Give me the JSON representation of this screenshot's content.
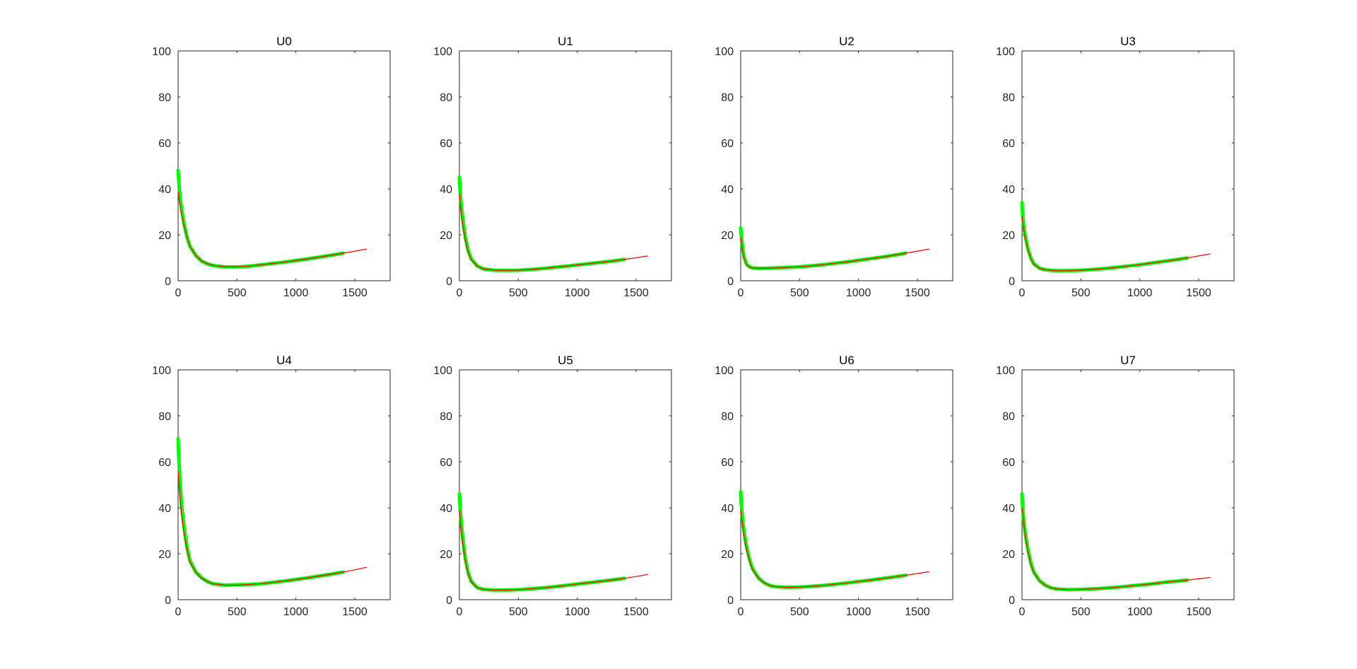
{
  "colors": {
    "fit": "#ff0000",
    "measured": "#00ff00",
    "axes": "#262626"
  },
  "chart_data": [
    {
      "type": "line",
      "title": "U0",
      "xlim": [
        0,
        1800
      ],
      "ylim": [
        0,
        100
      ],
      "xticks": [
        0,
        500,
        1000,
        1500
      ],
      "yticks": [
        0,
        20,
        40,
        60,
        80,
        100
      ],
      "grid": false,
      "series": [
        {
          "role": "measured",
          "x": [
            0,
            5,
            10,
            20,
            30,
            50,
            75,
            100,
            150,
            200,
            250,
            300,
            400,
            500,
            600,
            700,
            800,
            900,
            1000,
            1100,
            1200,
            1300,
            1400
          ],
          "y": [
            48,
            44,
            40,
            35,
            31,
            25,
            19,
            15,
            11,
            8.5,
            7.3,
            6.6,
            6.0,
            6.0,
            6.3,
            6.9,
            7.5,
            8.1,
            8.8,
            9.5,
            10.3,
            11.1,
            12.0
          ]
        },
        {
          "role": "fit",
          "x": [
            0,
            5,
            10,
            20,
            30,
            50,
            75,
            100,
            150,
            200,
            250,
            300,
            400,
            500,
            600,
            700,
            800,
            900,
            1000,
            1100,
            1200,
            1300,
            1400,
            1500,
            1600
          ],
          "y": [
            39,
            37,
            35,
            32,
            29,
            24,
            19,
            15,
            11,
            8.6,
            7.4,
            6.7,
            6.1,
            6.1,
            6.4,
            6.9,
            7.5,
            8.1,
            8.8,
            9.5,
            10.3,
            11.1,
            12.0,
            12.9,
            13.8
          ]
        }
      ]
    },
    {
      "type": "line",
      "title": "U1",
      "xlim": [
        0,
        1800
      ],
      "ylim": [
        0,
        100
      ],
      "xticks": [
        0,
        500,
        1000,
        1500
      ],
      "yticks": [
        0,
        20,
        40,
        60,
        80,
        100
      ],
      "grid": false,
      "series": [
        {
          "role": "measured",
          "x": [
            0,
            5,
            10,
            20,
            30,
            50,
            75,
            100,
            150,
            200,
            250,
            300,
            400,
            500,
            600,
            700,
            800,
            900,
            1000,
            1100,
            1200,
            1300,
            1400
          ],
          "y": [
            45,
            40,
            36,
            31,
            26,
            19,
            13,
            9.5,
            6.5,
            5.2,
            4.8,
            4.6,
            4.5,
            4.6,
            4.9,
            5.3,
            5.8,
            6.3,
            6.9,
            7.4,
            8.0,
            8.6,
            9.3
          ]
        },
        {
          "role": "fit",
          "x": [
            0,
            5,
            10,
            20,
            30,
            50,
            75,
            100,
            150,
            200,
            250,
            300,
            400,
            500,
            600,
            700,
            800,
            900,
            1000,
            1100,
            1200,
            1300,
            1400,
            1500,
            1600
          ],
          "y": [
            38,
            35,
            32,
            28,
            24,
            18,
            12.5,
            9.2,
            6.4,
            5.2,
            4.8,
            4.6,
            4.5,
            4.6,
            4.9,
            5.3,
            5.8,
            6.3,
            6.9,
            7.4,
            8.0,
            8.6,
            9.3,
            10.0,
            10.8
          ]
        }
      ]
    },
    {
      "type": "line",
      "title": "U2",
      "xlim": [
        0,
        1800
      ],
      "ylim": [
        0,
        100
      ],
      "xticks": [
        0,
        500,
        1000,
        1500
      ],
      "yticks": [
        0,
        20,
        40,
        60,
        80,
        100
      ],
      "grid": false,
      "series": [
        {
          "role": "measured",
          "x": [
            0,
            5,
            10,
            20,
            30,
            50,
            75,
            100,
            150,
            200,
            250,
            300,
            400,
            500,
            600,
            700,
            800,
            900,
            1000,
            1100,
            1200,
            1300,
            1400
          ],
          "y": [
            23,
            20,
            17,
            13,
            10,
            7.2,
            6.0,
            5.6,
            5.4,
            5.4,
            5.5,
            5.6,
            5.8,
            6.1,
            6.5,
            7.0,
            7.6,
            8.2,
            8.9,
            9.6,
            10.3,
            11.1,
            12.0
          ]
        },
        {
          "role": "fit",
          "x": [
            0,
            5,
            10,
            20,
            30,
            50,
            75,
            100,
            150,
            200,
            250,
            300,
            400,
            500,
            600,
            700,
            800,
            900,
            1000,
            1100,
            1200,
            1300,
            1400,
            1500,
            1600
          ],
          "y": [
            19,
            17,
            15,
            12,
            9.5,
            7.0,
            5.9,
            5.5,
            5.4,
            5.4,
            5.5,
            5.6,
            5.8,
            6.1,
            6.5,
            7.0,
            7.6,
            8.2,
            8.9,
            9.6,
            10.3,
            11.1,
            12.0,
            12.9,
            13.8
          ]
        }
      ]
    },
    {
      "type": "line",
      "title": "U3",
      "xlim": [
        0,
        1800
      ],
      "ylim": [
        0,
        100
      ],
      "xticks": [
        0,
        500,
        1000,
        1500
      ],
      "yticks": [
        0,
        20,
        40,
        60,
        80,
        100
      ],
      "grid": false,
      "series": [
        {
          "role": "measured",
          "x": [
            0,
            5,
            10,
            20,
            30,
            50,
            75,
            100,
            150,
            200,
            250,
            300,
            400,
            500,
            600,
            700,
            800,
            900,
            1000,
            1100,
            1200,
            1300,
            1400
          ],
          "y": [
            34,
            29,
            26,
            22,
            19,
            14,
            9.8,
            7.4,
            5.4,
            4.8,
            4.5,
            4.4,
            4.4,
            4.6,
            4.9,
            5.3,
            5.8,
            6.4,
            7.0,
            7.7,
            8.4,
            9.1,
            9.9
          ]
        },
        {
          "role": "fit",
          "x": [
            0,
            5,
            10,
            20,
            30,
            50,
            75,
            100,
            150,
            200,
            250,
            300,
            400,
            500,
            600,
            700,
            800,
            900,
            1000,
            1100,
            1200,
            1300,
            1400,
            1500,
            1600
          ],
          "y": [
            28,
            26,
            24,
            21,
            18,
            13.5,
            9.5,
            7.2,
            5.3,
            4.7,
            4.5,
            4.4,
            4.4,
            4.6,
            4.9,
            5.3,
            5.8,
            6.4,
            7.0,
            7.7,
            8.4,
            9.1,
            9.9,
            10.8,
            11.7
          ]
        }
      ]
    },
    {
      "type": "line",
      "title": "U4",
      "xlim": [
        0,
        1800
      ],
      "ylim": [
        0,
        100
      ],
      "xticks": [
        0,
        500,
        1000,
        1500
      ],
      "yticks": [
        0,
        20,
        40,
        60,
        80,
        100
      ],
      "grid": false,
      "series": [
        {
          "role": "measured",
          "x": [
            0,
            5,
            10,
            20,
            30,
            50,
            75,
            100,
            150,
            200,
            250,
            300,
            400,
            500,
            600,
            700,
            800,
            900,
            1000,
            1100,
            1200,
            1300,
            1400
          ],
          "y": [
            70,
            63,
            57,
            48,
            41,
            32,
            23,
            17,
            12,
            9.5,
            7.8,
            6.9,
            6.3,
            6.5,
            6.6,
            6.9,
            7.5,
            8.1,
            8.8,
            9.5,
            10.3,
            11.1,
            12.0
          ]
        },
        {
          "role": "fit",
          "x": [
            0,
            5,
            10,
            20,
            30,
            50,
            75,
            100,
            150,
            200,
            250,
            300,
            400,
            500,
            600,
            700,
            800,
            900,
            1000,
            1100,
            1200,
            1300,
            1400,
            1500,
            1600
          ],
          "y": [
            56,
            52,
            48,
            42,
            37,
            29,
            22,
            16.5,
            11.8,
            9.3,
            7.8,
            6.9,
            6.3,
            6.3,
            6.6,
            7.0,
            7.5,
            8.1,
            8.8,
            9.5,
            10.3,
            11.1,
            12.0,
            13.0,
            14.1
          ]
        }
      ]
    },
    {
      "type": "line",
      "title": "U5",
      "xlim": [
        0,
        1800
      ],
      "ylim": [
        0,
        100
      ],
      "xticks": [
        0,
        500,
        1000,
        1500
      ],
      "yticks": [
        0,
        20,
        40,
        60,
        80,
        100
      ],
      "grid": false,
      "series": [
        {
          "role": "measured",
          "x": [
            0,
            5,
            10,
            20,
            30,
            50,
            75,
            100,
            150,
            200,
            250,
            300,
            400,
            500,
            600,
            700,
            800,
            900,
            1000,
            1100,
            1200,
            1300,
            1400
          ],
          "y": [
            46,
            41,
            37,
            31,
            26,
            18,
            11.5,
            8.0,
            5.3,
            4.5,
            4.3,
            4.2,
            4.2,
            4.4,
            4.7,
            5.1,
            5.6,
            6.2,
            6.8,
            7.4,
            8.0,
            8.6,
            9.3
          ]
        },
        {
          "role": "fit",
          "x": [
            0,
            5,
            10,
            20,
            30,
            50,
            75,
            100,
            150,
            200,
            250,
            300,
            400,
            500,
            600,
            700,
            800,
            900,
            1000,
            1100,
            1200,
            1300,
            1400,
            1500,
            1600
          ],
          "y": [
            39,
            36,
            33,
            28,
            24,
            17,
            11.2,
            7.8,
            5.2,
            4.5,
            4.3,
            4.2,
            4.2,
            4.4,
            4.7,
            5.1,
            5.6,
            6.2,
            6.8,
            7.4,
            8.0,
            8.6,
            9.3,
            10.1,
            11.0
          ]
        }
      ]
    },
    {
      "type": "line",
      "title": "U6",
      "xlim": [
        0,
        1800
      ],
      "ylim": [
        0,
        100
      ],
      "xticks": [
        0,
        500,
        1000,
        1500
      ],
      "yticks": [
        0,
        20,
        40,
        60,
        80,
        100
      ],
      "grid": false,
      "series": [
        {
          "role": "measured",
          "x": [
            0,
            5,
            10,
            20,
            30,
            50,
            75,
            100,
            150,
            200,
            250,
            300,
            400,
            500,
            600,
            700,
            800,
            900,
            1000,
            1100,
            1200,
            1300,
            1400
          ],
          "y": [
            47,
            42,
            38,
            33,
            29,
            23,
            17.5,
            13.5,
            9.5,
            7.3,
            6.1,
            5.6,
            5.4,
            5.5,
            5.8,
            6.2,
            6.7,
            7.3,
            7.9,
            8.5,
            9.2,
            9.9,
            10.6
          ]
        },
        {
          "role": "fit",
          "x": [
            0,
            5,
            10,
            20,
            30,
            50,
            75,
            100,
            150,
            200,
            250,
            300,
            400,
            500,
            600,
            700,
            800,
            900,
            1000,
            1100,
            1200,
            1300,
            1400,
            1500,
            1600
          ],
          "y": [
            39,
            37,
            35,
            31,
            27,
            22,
            17,
            13.2,
            9.4,
            7.3,
            6.1,
            5.6,
            5.4,
            5.5,
            5.8,
            6.2,
            6.7,
            7.3,
            7.9,
            8.5,
            9.2,
            9.9,
            10.6,
            11.4,
            12.2
          ]
        }
      ]
    },
    {
      "type": "line",
      "title": "U7",
      "xlim": [
        0,
        1800
      ],
      "ylim": [
        0,
        100
      ],
      "xticks": [
        0,
        500,
        1000,
        1500
      ],
      "yticks": [
        0,
        20,
        40,
        60,
        80,
        100
      ],
      "grid": false,
      "series": [
        {
          "role": "measured",
          "x": [
            0,
            5,
            10,
            20,
            30,
            50,
            75,
            100,
            150,
            200,
            250,
            300,
            400,
            500,
            600,
            700,
            800,
            900,
            1000,
            1100,
            1200,
            1300,
            1400
          ],
          "y": [
            46,
            41,
            37,
            32,
            28,
            22,
            16,
            12,
            8.2,
            6.2,
            5.1,
            4.6,
            4.4,
            4.5,
            4.7,
            5.0,
            5.4,
            5.9,
            6.4,
            6.9,
            7.5,
            8.0,
            8.5
          ]
        },
        {
          "role": "fit",
          "x": [
            0,
            5,
            10,
            20,
            30,
            50,
            75,
            100,
            150,
            200,
            250,
            300,
            400,
            500,
            600,
            700,
            800,
            900,
            1000,
            1100,
            1200,
            1300,
            1400,
            1500,
            1600
          ],
          "y": [
            40,
            38,
            36,
            31,
            27,
            21,
            15.5,
            11.7,
            8.1,
            6.2,
            5.1,
            4.6,
            4.4,
            4.5,
            4.7,
            5.0,
            5.4,
            5.9,
            6.4,
            6.9,
            7.5,
            8.0,
            8.5,
            9.1,
            9.7
          ]
        }
      ]
    }
  ]
}
